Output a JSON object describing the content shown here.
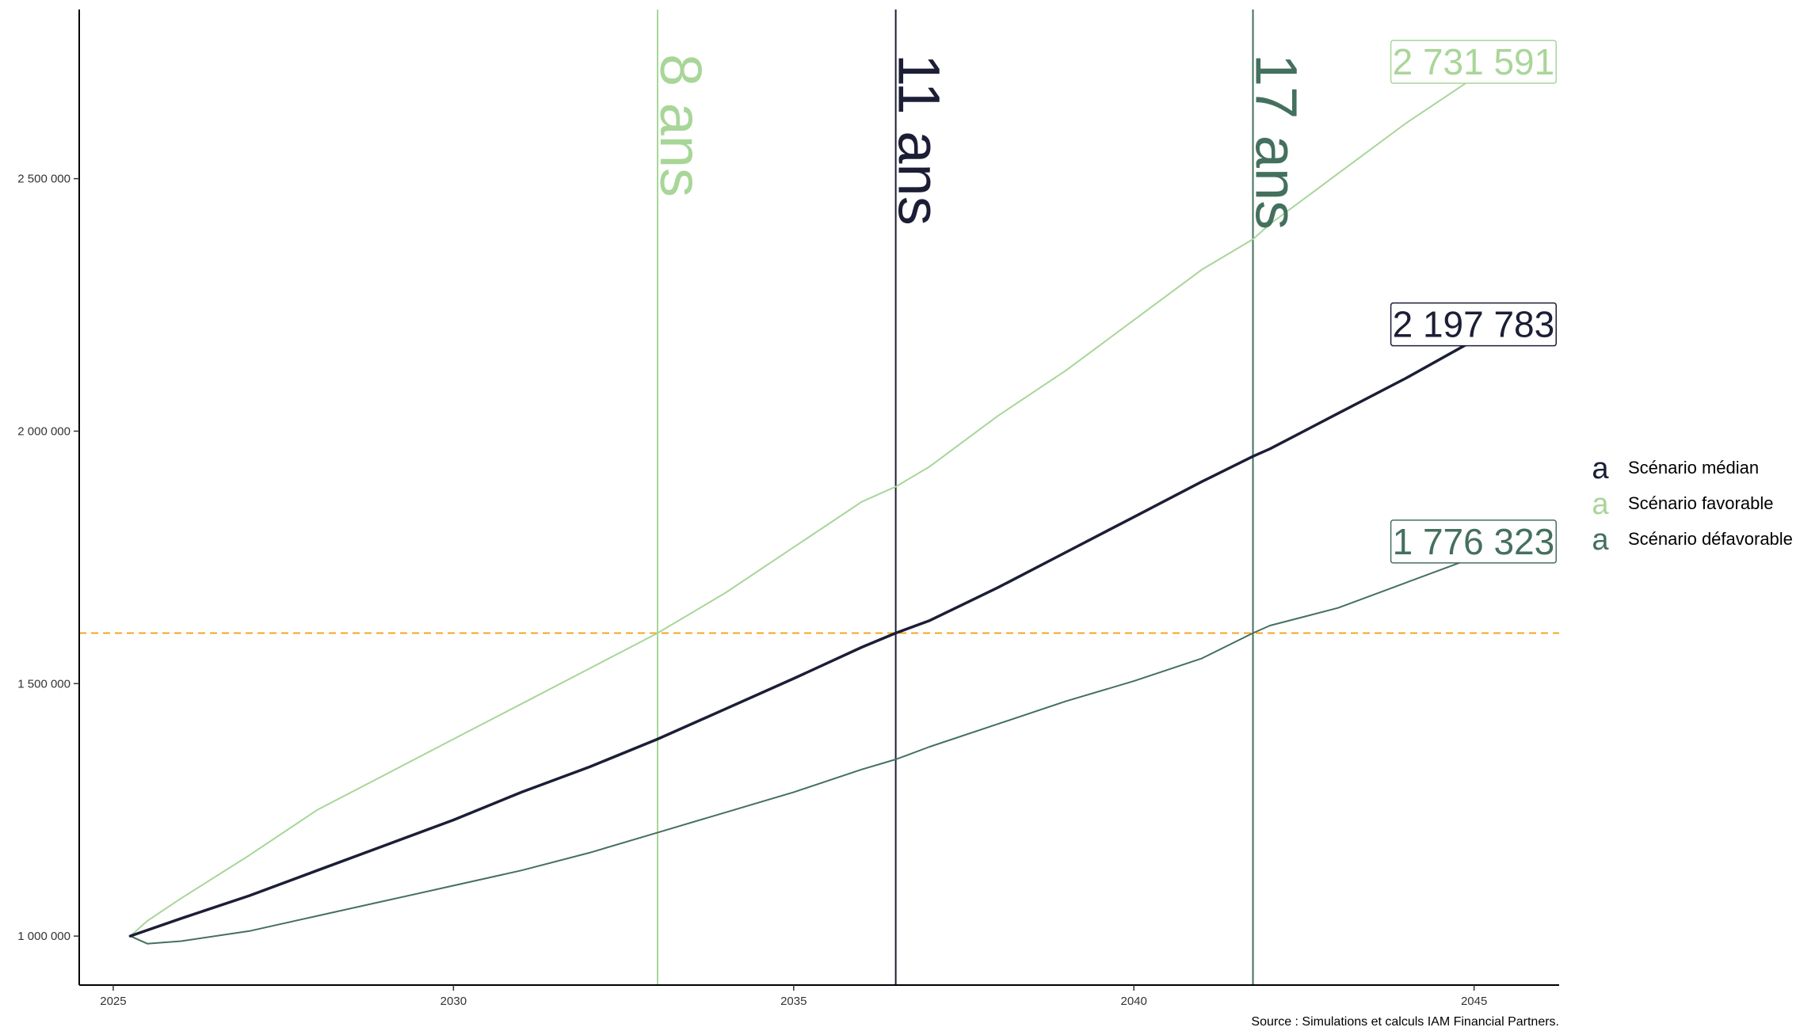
{
  "chart_data": {
    "type": "line",
    "title": "",
    "xlabel": "",
    "ylabel": "",
    "xlim": [
      2024.5,
      2046.25
    ],
    "ylim": [
      903000,
      2835000
    ],
    "grid": false,
    "legend_position": "right",
    "x_ticks": [
      2025,
      2030,
      2035,
      2040,
      2045
    ],
    "x_tick_labels": [
      "2025",
      "2030",
      "2035",
      "2040",
      "2045"
    ],
    "y_ticks": [
      1000000,
      1500000,
      2000000,
      2500000
    ],
    "y_tick_labels": [
      "1 000 000",
      "1 500 000",
      "2 000 000",
      "2 500 000"
    ],
    "colors": {
      "median": "#1c1e36",
      "favorable": "#a8d698",
      "defavorable": "#44705e",
      "target": "#f5a623"
    },
    "series": [
      {
        "name": "Scénario médian",
        "key": "median",
        "x": [
          2025.25,
          2026,
          2027,
          2028,
          2029,
          2030,
          2031,
          2032,
          2033,
          2034,
          2035,
          2036,
          2036.5,
          2037,
          2038,
          2039,
          2040,
          2041,
          2041.75,
          2042,
          2043,
          2044,
          2045
        ],
        "values": [
          1000000,
          1035000,
          1080000,
          1130000,
          1180000,
          1230000,
          1285000,
          1335000,
          1390000,
          1450000,
          1510000,
          1572000,
          1600000,
          1625000,
          1690000,
          1760000,
          1830000,
          1900000,
          1950000,
          1965000,
          2035000,
          2105000,
          2180000
        ],
        "end_label": "2 197 783",
        "line_width": 3.5
      },
      {
        "name": "Scénario favorable",
        "key": "favorable",
        "x": [
          2025.25,
          2025.5,
          2026,
          2027,
          2028,
          2029,
          2030,
          2031,
          2032,
          2033,
          2034,
          2035,
          2036,
          2036.5,
          2037,
          2038,
          2039,
          2040,
          2041,
          2041.75,
          2042,
          2043,
          2044,
          2045
        ],
        "values": [
          1000000,
          1030000,
          1075000,
          1160000,
          1250000,
          1320000,
          1390000,
          1460000,
          1530000,
          1600000,
          1680000,
          1770000,
          1860000,
          1890000,
          1930000,
          2030000,
          2120000,
          2220000,
          2320000,
          2380000,
          2410000,
          2510000,
          2610000,
          2700000
        ],
        "end_label": "2 731 591",
        "line_width": 2
      },
      {
        "name": "Scénario défavorable",
        "key": "defavorable",
        "x": [
          2025.25,
          2025.5,
          2026,
          2027,
          2028,
          2029,
          2030,
          2031,
          2032,
          2033,
          2034,
          2035,
          2036,
          2036.5,
          2037,
          2038,
          2039,
          2040,
          2041,
          2041.75,
          2042,
          2043,
          2044,
          2045
        ],
        "values": [
          1000000,
          985000,
          990000,
          1010000,
          1040000,
          1070000,
          1100000,
          1130000,
          1165000,
          1205000,
          1245000,
          1285000,
          1330000,
          1350000,
          1375000,
          1420000,
          1465000,
          1505000,
          1550000,
          1600000,
          1615000,
          1650000,
          1700000,
          1750000
        ],
        "end_label": "1 776 323",
        "line_width": 2
      }
    ],
    "target_line": {
      "y": 1600000,
      "style": "dashed"
    },
    "vertical_lines": [
      {
        "x": 2033.0,
        "label": "8 ans",
        "key": "favorable"
      },
      {
        "x": 2036.5,
        "label": "11 ans",
        "key": "median"
      },
      {
        "x": 2041.75,
        "label": "17 ans",
        "key": "defavorable"
      }
    ],
    "end_label_x": 2043.8,
    "legend": [
      {
        "key_glyph": "a",
        "label": "Scénario médian",
        "key": "median"
      },
      {
        "key_glyph": "a",
        "label": "Scénario favorable",
        "key": "favorable"
      },
      {
        "key_glyph": "a",
        "label": "Scénario défavorable",
        "key": "defavorable"
      }
    ],
    "caption": "Source : Simulations et calculs IAM Financial Partners."
  }
}
